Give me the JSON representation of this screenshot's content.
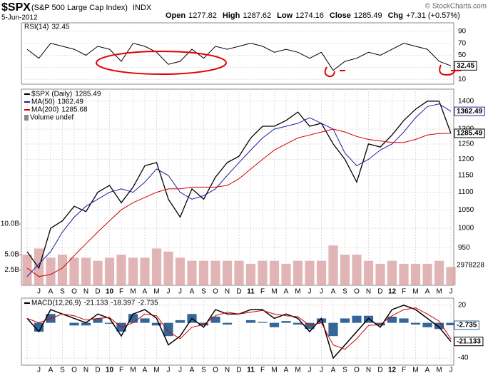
{
  "header": {
    "symbol": "$SPX",
    "name": "(S&P 500 Large Cap Index)",
    "exchange": "INDX",
    "date": "5-Jun-2012",
    "credit": "© StockCharts.com",
    "quote": [
      {
        "label": "Open",
        "value": "1277.82"
      },
      {
        "label": "High",
        "value": "1287.62"
      },
      {
        "label": "Low",
        "value": "1274.16"
      },
      {
        "label": "Close",
        "value": "1285.49"
      },
      {
        "label": "Chg",
        "value": "+7.31 (+0.57%)"
      }
    ]
  },
  "chart_data": [
    {
      "type": "line",
      "series": [
        {
          "name": "RSI(14)",
          "color": "#000000",
          "values": [
            60,
            45,
            70,
            65,
            60,
            50,
            65,
            60,
            40,
            70,
            65,
            55,
            35,
            40,
            60,
            45,
            65,
            60,
            65,
            70,
            65,
            55,
            60,
            55,
            45,
            55,
            25,
            40,
            45,
            55,
            50,
            60,
            70,
            65,
            60,
            40,
            32.45
          ]
        }
      ],
      "ylim": [
        2,
        104
      ],
      "yticks": [
        10,
        30,
        50,
        70,
        90
      ],
      "grid": true
    },
    {
      "type": "price",
      "categories": [
        null,
        "J",
        "A",
        "S",
        "O",
        "N",
        "D",
        "10",
        "F",
        "M",
        "A",
        "M",
        "J",
        "J",
        "A",
        "S",
        "O",
        "N",
        "D",
        "11",
        "F",
        "M",
        "A",
        "M",
        "J",
        "J",
        "A",
        "S",
        "O",
        "N",
        "D",
        "12",
        "F",
        "M",
        "A",
        "M",
        "J"
      ],
      "series": [
        {
          "name": "$SPX (Daily)",
          "color": "#000000",
          "values": [
            940,
            900,
            1000,
            1020,
            1060,
            1045,
            1100,
            1120,
            1070,
            1115,
            1180,
            1190,
            1080,
            1030,
            1110,
            1080,
            1145,
            1190,
            1210,
            1270,
            1310,
            1310,
            1330,
            1360,
            1310,
            1320,
            1250,
            1200,
            1130,
            1250,
            1240,
            1280,
            1330,
            1370,
            1400,
            1400,
            1285.49
          ]
        },
        {
          "name": "MA(50)",
          "color": "#1f1f9e",
          "values": [
            880,
            910,
            940,
            990,
            1030,
            1060,
            1080,
            1100,
            1110,
            1100,
            1130,
            1170,
            1150,
            1100,
            1080,
            1090,
            1110,
            1150,
            1190,
            1230,
            1270,
            1300,
            1310,
            1320,
            1340,
            1320,
            1300,
            1220,
            1180,
            1200,
            1230,
            1250,
            1290,
            1340,
            1380,
            1390,
            1362.49
          ]
        },
        {
          "name": "MA(200)",
          "color": "#d00000",
          "values": [
            900,
            880,
            885,
            900,
            930,
            960,
            990,
            1020,
            1050,
            1070,
            1085,
            1100,
            1110,
            1110,
            1115,
            1115,
            1115,
            1120,
            1140,
            1170,
            1200,
            1230,
            1250,
            1270,
            1280,
            1290,
            1300,
            1290,
            1275,
            1265,
            1260,
            1255,
            1255,
            1265,
            1280,
            1285,
            1285.68
          ]
        },
        {
          "name": "Volume undef",
          "axis": "y2",
          "color": "#d9a3a3",
          "values": [
            5,
            6,
            4.5,
            5,
            4.5,
            4.5,
            4,
            4.5,
            5,
            4.5,
            4.5,
            6,
            5.5,
            4.5,
            4,
            4,
            4,
            4,
            4,
            3.5,
            4,
            4,
            3.5,
            4,
            4,
            4,
            6.5,
            5,
            5,
            4,
            3.5,
            4,
            3.5,
            3.5,
            3.5,
            4,
            2.98
          ]
        }
      ],
      "ylim": [
        860,
        1445
      ],
      "yticks": [
        950,
        1000,
        1050,
        1100,
        1150,
        1200,
        1250,
        1300,
        1400
      ],
      "log_scale": true,
      "y2lim": [
        0,
        32
      ],
      "y2ticks": [
        {
          "value": 2.5,
          "label": "2.5B"
        },
        {
          "value": 5,
          "label": "5.0B"
        },
        {
          "value": 10,
          "label": "10.0B"
        }
      ],
      "volume_label": "2978228",
      "grid": true
    },
    {
      "type": "macd",
      "categories": [
        null,
        "J",
        "A",
        "S",
        "O",
        "N",
        "D",
        "10",
        "F",
        "M",
        "A",
        "M",
        "J",
        "J",
        "A",
        "S",
        "O",
        "N",
        "D",
        "11",
        "F",
        "M",
        "A",
        "M",
        "J",
        "J",
        "A",
        "S",
        "O",
        "N",
        "D",
        "12",
        "F",
        "M",
        "A",
        "M",
        "J"
      ],
      "series": [
        {
          "name": "MACD(12,26,9)",
          "color": "#000000",
          "values": [
            5,
            -10,
            15,
            10,
            5,
            0,
            10,
            5,
            -15,
            10,
            15,
            5,
            -25,
            -15,
            5,
            -5,
            15,
            10,
            10,
            15,
            15,
            5,
            10,
            5,
            -10,
            5,
            -40,
            -25,
            -10,
            5,
            -5,
            15,
            20,
            15,
            5,
            -5,
            -21.133
          ]
        },
        {
          "color": "#d00000",
          "values": [
            5,
            0,
            5,
            10,
            8,
            3,
            5,
            6,
            -5,
            0,
            10,
            8,
            -10,
            -18,
            -5,
            -2,
            8,
            12,
            10,
            12,
            14,
            10,
            8,
            7,
            -3,
            0,
            -25,
            -30,
            -18,
            -3,
            -2,
            8,
            15,
            17,
            10,
            2,
            -18.397
          ]
        },
        {
          "type": "bar",
          "color": "#336699",
          "values": [
            0,
            -10,
            10,
            0,
            -3,
            -3,
            5,
            -1,
            -10,
            10,
            5,
            -3,
            -15,
            3,
            10,
            -3,
            7,
            -2,
            0,
            3,
            1,
            -5,
            2,
            -2,
            -7,
            5,
            -15,
            5,
            8,
            8,
            -3,
            7,
            5,
            -2,
            -5,
            -7,
            -2.735
          ]
        }
      ],
      "ylim": [
        -48,
        28
      ],
      "yticks": [
        -40,
        20
      ],
      "grid": true
    }
  ]
}
